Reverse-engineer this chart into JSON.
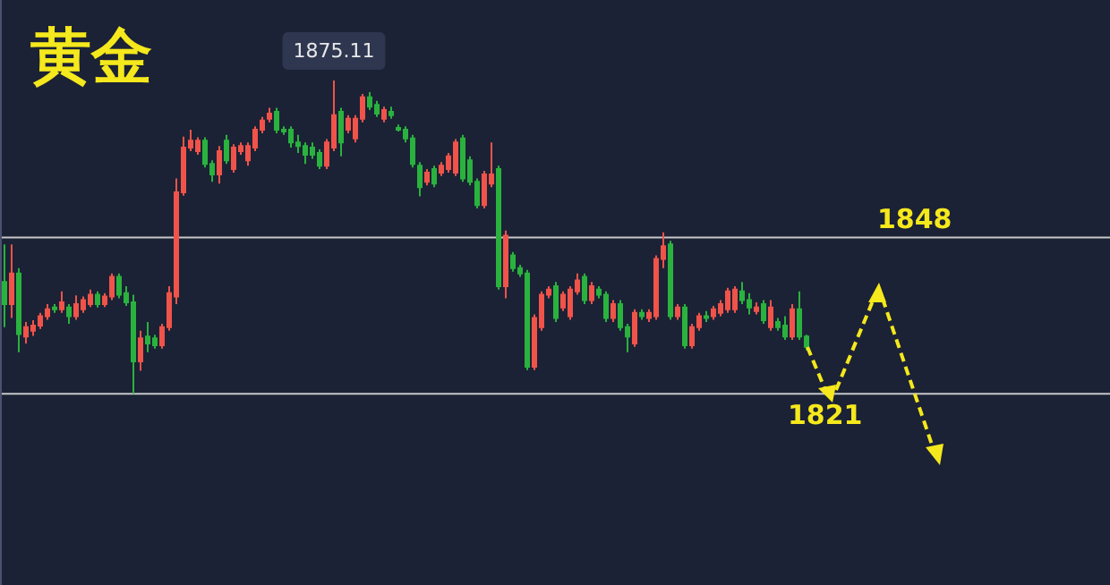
{
  "chart_data": {
    "type": "candlestick",
    "title": "黄金",
    "categories": [
      null,
      null,
      null,
      null,
      null,
      null,
      null,
      null,
      null,
      null,
      null,
      null,
      null,
      null,
      null,
      null,
      null,
      null,
      null,
      null,
      null,
      null,
      null,
      null,
      null,
      null,
      null,
      null,
      null,
      null,
      null,
      null,
      null,
      null,
      null,
      null,
      null,
      null,
      null,
      null,
      null,
      null,
      null,
      null,
      null,
      null,
      null,
      null,
      null,
      null,
      null,
      null,
      null,
      null,
      null,
      null,
      null,
      null,
      null,
      null,
      null,
      null,
      null,
      null,
      null,
      null,
      null,
      null,
      null,
      null,
      null,
      null,
      null,
      null,
      null,
      null,
      null,
      null,
      null,
      null,
      null,
      null,
      null,
      null,
      null,
      null,
      null,
      null,
      null,
      null,
      null,
      null,
      null,
      null,
      null,
      null,
      null,
      null,
      null,
      null,
      null,
      null,
      null,
      null,
      null,
      null,
      null,
      null,
      null,
      null,
      null,
      null,
      null
    ],
    "colors": [
      "#2ab23e",
      "#f0534a",
      "#2ab23e",
      "#f0534a",
      "#f0534a",
      "#f0534a",
      "#f0534a",
      "#2ab23e",
      "#f0534a",
      "#2ab23e",
      "#f0534a",
      "#f0534a",
      "#f0534a",
      "#2ab23e",
      "#f0534a",
      "#f0534a",
      "#2ab23e",
      "#2ab23e",
      "#2ab23e",
      "#f0534a",
      "#2ab23e",
      "#2ab23e",
      "#f0534a",
      "#f0534a",
      "#f0534a",
      "#f0534a",
      "#f0534a",
      "#f0534a",
      "#2ab23e",
      "#2ab23e",
      "#f0534a",
      "#2ab23e",
      "#f0534a",
      "#f0534a",
      "#f0534a",
      "#f0534a",
      "#f0534a",
      "#f0534a",
      "#2ab23e",
      "#2ab23e",
      "#2ab23e",
      "#2ab23e",
      "#2ab23e",
      "#2ab23e",
      "#2ab23e",
      "#f0534a",
      "#f0534a",
      "#2ab23e",
      "#f0534a",
      "#f0534a",
      "#f0534a",
      "#2ab23e",
      "#2ab23e",
      "#f0534a",
      "#2ab23e",
      "#2ab23e",
      "#2ab23e",
      "#2ab23e",
      "#2ab23e",
      "#f0534a",
      "#2ab23e",
      "#f0534a",
      "#f0534a",
      "#f0534a",
      "#2ab23e",
      "#2ab23e",
      "#2ab23e",
      "#f0534a",
      "#f0534a",
      "#2ab23e",
      "#f0534a",
      "#2ab23e",
      "#2ab23e",
      "#2ab23e",
      "#f0534a",
      "#f0534a",
      "#f0534a",
      "#2ab23e",
      "#f0534a",
      "#f0534a",
      "#f0534a",
      "#2ab23e",
      "#f0534a",
      "#2ab23e",
      "#2ab23e",
      "#f0534a",
      "#2ab23e",
      "#2ab23e",
      "#f0534a",
      "#2ab23e",
      "#f0534a",
      "#f0534a",
      "#f0534a",
      "#2ab23e",
      "#f0534a",
      "#2ab23e",
      "#f0534a",
      "#f0534a",
      "#2ab23e",
      "#f0534a",
      "#f0534a",
      "#f0534a",
      "#f0534a",
      "#2ab23e",
      "#2ab23e",
      "#f0534a",
      "#2ab23e",
      "#f0534a",
      "#2ab23e",
      "#2ab23e",
      "#f0534a",
      "#2ab23e",
      "#2ab23e"
    ],
    "ohlc": [
      [
        1840.3,
        1846.8,
        1832.5,
        1836.5
      ],
      [
        1836.5,
        1846.8,
        1834.1,
        1841.8
      ],
      [
        1841.8,
        1842.7,
        1828.2,
        1831.3
      ],
      [
        1830.9,
        1833.4,
        1829.7,
        1832.5
      ],
      [
        1831.9,
        1833.7,
        1831.0,
        1832.8
      ],
      [
        1832.8,
        1835.0,
        1832.2,
        1834.4
      ],
      [
        1834.4,
        1836.5,
        1833.8,
        1835.6
      ],
      [
        1835.9,
        1836.5,
        1835.0,
        1835.6
      ],
      [
        1835.6,
        1838.7,
        1835.0,
        1836.8
      ],
      [
        1835.9,
        1836.5,
        1833.1,
        1834.4
      ],
      [
        1834.4,
        1838.0,
        1833.8,
        1836.5
      ],
      [
        1835.6,
        1837.8,
        1835.0,
        1837.2
      ],
      [
        1836.5,
        1839.0,
        1836.0,
        1838.1
      ],
      [
        1838.1,
        1838.7,
        1835.9,
        1836.5
      ],
      [
        1836.5,
        1838.4,
        1836.0,
        1837.8
      ],
      [
        1837.8,
        1841.8,
        1837.2,
        1841.2
      ],
      [
        1841.2,
        1841.8,
        1837.5,
        1838.1
      ],
      [
        1838.4,
        1839.6,
        1836.2,
        1836.8
      ],
      [
        1836.8,
        1838.1,
        1821.0,
        1826.6
      ],
      [
        1826.6,
        1831.9,
        1825.0,
        1830.6
      ],
      [
        1830.9,
        1833.4,
        1828.2,
        1829.7
      ],
      [
        1830.6,
        1831.2,
        1828.8,
        1829.4
      ],
      [
        1829.4,
        1833.1,
        1828.8,
        1832.5
      ],
      [
        1832.5,
        1839.6,
        1831.9,
        1838.4
      ],
      [
        1837.8,
        1858.2,
        1836.5,
        1855.8
      ],
      [
        1855.8,
        1865.4,
        1855.2,
        1863.5
      ],
      [
        1863.5,
        1866.6,
        1862.9,
        1864.7
      ],
      [
        1862.9,
        1865.3,
        1862.3,
        1864.7
      ],
      [
        1864.7,
        1865.3,
        1860.1,
        1860.7
      ],
      [
        1860.7,
        1861.3,
        1857.6,
        1858.9
      ],
      [
        1858.9,
        1863.8,
        1857.3,
        1862.9
      ],
      [
        1864.7,
        1865.7,
        1860.7,
        1861.3
      ],
      [
        1859.8,
        1864.1,
        1859.2,
        1863.5
      ],
      [
        1862.9,
        1864.4,
        1862.3,
        1863.8
      ],
      [
        1861.3,
        1864.4,
        1860.4,
        1863.8
      ],
      [
        1863.5,
        1867.2,
        1862.9,
        1866.6
      ],
      [
        1866.6,
        1868.8,
        1866.0,
        1868.2
      ],
      [
        1868.5,
        1870.4,
        1867.9,
        1869.4
      ],
      [
        1869.7,
        1870.4,
        1866.0,
        1866.6
      ],
      [
        1866.6,
        1867.2,
        1865.7,
        1866.3
      ],
      [
        1866.6,
        1867.2,
        1863.5,
        1864.4
      ],
      [
        1864.4,
        1865.7,
        1862.6,
        1863.8
      ],
      [
        1863.8,
        1864.4,
        1860.7,
        1862.3
      ],
      [
        1863.5,
        1864.4,
        1861.6,
        1862.3
      ],
      [
        1862.6,
        1863.2,
        1859.8,
        1860.4
      ],
      [
        1860.4,
        1865.0,
        1859.8,
        1864.4
      ],
      [
        1863.5,
        1875.11,
        1862.9,
        1869.1
      ],
      [
        1869.7,
        1870.4,
        1862.0,
        1864.4
      ],
      [
        1866.6,
        1869.1,
        1866.0,
        1868.5
      ],
      [
        1865.1,
        1869.1,
        1864.4,
        1868.5
      ],
      [
        1868.5,
        1872.8,
        1867.9,
        1872.2
      ],
      [
        1872.2,
        1873.1,
        1870.0,
        1870.6
      ],
      [
        1870.9,
        1871.6,
        1868.8,
        1869.4
      ],
      [
        1868.5,
        1870.6,
        1867.9,
        1870.0
      ],
      [
        1869.7,
        1870.6,
        1868.5,
        1869.1
      ],
      [
        1866.9,
        1867.5,
        1866.3,
        1866.6
      ],
      [
        1866.6,
        1867.2,
        1864.4,
        1865.1
      ],
      [
        1865.1,
        1865.7,
        1860.1,
        1860.7
      ],
      [
        1860.4,
        1861.0,
        1855.1,
        1856.7
      ],
      [
        1857.6,
        1859.8,
        1857.0,
        1859.2
      ],
      [
        1859.8,
        1860.4,
        1856.7,
        1857.3
      ],
      [
        1859.2,
        1861.0,
        1858.6,
        1860.4
      ],
      [
        1859.8,
        1862.6,
        1859.2,
        1862.0
      ],
      [
        1859.2,
        1865.0,
        1858.6,
        1864.4
      ],
      [
        1865.1,
        1865.7,
        1857.6,
        1858.2
      ],
      [
        1861.3,
        1862.0,
        1857.0,
        1857.6
      ],
      [
        1857.6,
        1858.2,
        1853.0,
        1853.6
      ],
      [
        1853.6,
        1859.5,
        1853.0,
        1858.9
      ],
      [
        1857.3,
        1864.4,
        1856.7,
        1858.9
      ],
      [
        1859.8,
        1860.4,
        1839.0,
        1839.6
      ],
      [
        1839.6,
        1849.2,
        1837.5,
        1848.3
      ],
      [
        1844.9,
        1845.5,
        1842.1,
        1842.7
      ],
      [
        1842.7,
        1843.3,
        1841.2,
        1841.8
      ],
      [
        1841.8,
        1842.4,
        1825.1,
        1825.7
      ],
      [
        1825.7,
        1834.7,
        1825.1,
        1834.1
      ],
      [
        1832.5,
        1838.7,
        1831.9,
        1838.1
      ],
      [
        1838.1,
        1839.6,
        1837.5,
        1839.0
      ],
      [
        1839.6,
        1840.3,
        1833.4,
        1834.1
      ],
      [
        1835.9,
        1838.7,
        1835.3,
        1838.1
      ],
      [
        1834.4,
        1839.6,
        1833.8,
        1839.0
      ],
      [
        1838.7,
        1841.8,
        1838.1,
        1840.6
      ],
      [
        1841.2,
        1841.8,
        1836.5,
        1837.2
      ],
      [
        1837.2,
        1840.3,
        1836.5,
        1839.6
      ],
      [
        1839.0,
        1839.6,
        1837.5,
        1838.1
      ],
      [
        1838.1,
        1838.7,
        1833.4,
        1834.1
      ],
      [
        1834.1,
        1837.2,
        1833.4,
        1836.5
      ],
      [
        1836.5,
        1837.2,
        1831.9,
        1832.5
      ],
      [
        1832.5,
        1833.1,
        1828.2,
        1830.9
      ],
      [
        1829.7,
        1835.6,
        1829.1,
        1835.0
      ],
      [
        1835.0,
        1835.6,
        1833.8,
        1834.4
      ],
      [
        1834.1,
        1835.6,
        1833.4,
        1835.0
      ],
      [
        1834.4,
        1844.9,
        1833.8,
        1844.3
      ],
      [
        1844.3,
        1848.9,
        1842.7,
        1846.5
      ],
      [
        1846.8,
        1847.4,
        1833.8,
        1834.4
      ],
      [
        1834.4,
        1836.5,
        1833.8,
        1835.9
      ],
      [
        1835.9,
        1836.5,
        1828.8,
        1829.4
      ],
      [
        1829.4,
        1833.1,
        1828.8,
        1832.5
      ],
      [
        1832.5,
        1835.0,
        1831.9,
        1834.4
      ],
      [
        1834.4,
        1835.3,
        1833.4,
        1834.1
      ],
      [
        1834.4,
        1836.2,
        1833.8,
        1835.6
      ],
      [
        1835.0,
        1837.2,
        1834.4,
        1836.5
      ],
      [
        1835.6,
        1839.3,
        1835.0,
        1838.7
      ],
      [
        1835.6,
        1839.6,
        1835.0,
        1839.0
      ],
      [
        1838.7,
        1840.3,
        1836.5,
        1837.2
      ],
      [
        1837.2,
        1838.4,
        1834.7,
        1835.9
      ],
      [
        1835.3,
        1836.8,
        1834.7,
        1835.9
      ],
      [
        1836.5,
        1837.2,
        1833.1,
        1833.7
      ],
      [
        1832.5,
        1837.2,
        1831.9,
        1835.9
      ],
      [
        1833.4,
        1834.1,
        1831.9,
        1832.5
      ],
      [
        1832.8,
        1834.4,
        1830.3,
        1830.9
      ],
      [
        1830.9,
        1836.5,
        1830.3,
        1835.6
      ],
      [
        1835.6,
        1838.7,
        1830.3,
        1830.9
      ],
      [
        1830.9,
        1831.2,
        1828.5,
        1829.1
      ]
    ],
    "ylim": [
      1788,
      1889
    ],
    "ref_lines": [
      {
        "axis": "y",
        "value": 1848,
        "label": "1848",
        "color": "#c8c8c8"
      },
      {
        "axis": "y",
        "value": 1821,
        "label": "1821",
        "color": "#c8c8c8"
      }
    ],
    "annotations": [
      {
        "text": "1875.11",
        "y": 1875.11
      }
    ]
  }
}
